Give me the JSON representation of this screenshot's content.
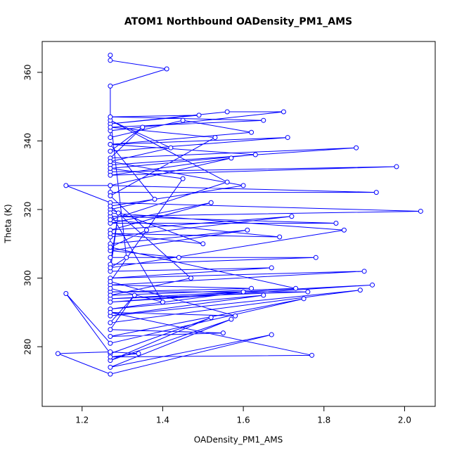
{
  "chart_data": {
    "type": "line",
    "markers": true,
    "title": "ATOM1 Northbound OADensity_PM1_AMS",
    "x_label": "OADensity_PM1_AMS",
    "y_label": "Theta (K)",
    "color": "#0000ff",
    "x": [
      1.27,
      1.27,
      1.41,
      1.27,
      1.27,
      1.49,
      1.27,
      1.56,
      1.7,
      1.27,
      1.27,
      1.45,
      1.62,
      1.27,
      1.71,
      1.27,
      1.35,
      1.27,
      1.88,
      1.27,
      1.27,
      1.98,
      1.27,
      1.57,
      1.27,
      1.93,
      1.27,
      1.27,
      1.16,
      1.27,
      2.04,
      1.27,
      1.83,
      1.27,
      1.52,
      1.27,
      1.72,
      1.27,
      1.27,
      1.61,
      1.27,
      1.44,
      1.27,
      1.78,
      1.27,
      1.29,
      1.27,
      1.67,
      1.27,
      1.9,
      1.27,
      1.62,
      1.27,
      1.76,
      1.27,
      1.92,
      1.27,
      1.6,
      1.27,
      1.65,
      1.27,
      1.89,
      1.27,
      1.33,
      1.27,
      1.55,
      1.27,
      1.75,
      1.27,
      1.16,
      1.27,
      1.52,
      1.27,
      1.57,
      1.27,
      1.67,
      1.27,
      1.14,
      1.27,
      1.34,
      1.27,
      1.77,
      1.27,
      1.58,
      1.27,
      1.45,
      1.27,
      1.63,
      1.27,
      1.38,
      1.27,
      1.5,
      1.27,
      1.69,
      1.27,
      1.56,
      1.27,
      1.42,
      1.27,
      1.6,
      1.27,
      1.47,
      1.27,
      1.73,
      1.27,
      1.36,
      1.27,
      1.53,
      1.27,
      1.65,
      1.27,
      1.31,
      1.27,
      1.85,
      1.27,
      1.4,
      1.27
    ],
    "values": [
      365,
      363.5,
      361,
      356,
      347,
      347.5,
      345,
      348.5,
      348.5,
      343,
      341,
      346,
      342.5,
      339,
      341,
      337,
      344,
      335,
      338,
      333,
      331,
      332.5,
      330,
      335,
      327,
      325,
      325,
      327,
      327,
      322,
      319.5,
      318,
      316,
      316,
      322,
      314,
      318,
      312,
      310,
      314,
      308,
      306,
      306,
      306,
      304,
      319,
      302,
      303,
      300,
      302,
      298,
      297,
      296,
      296,
      294,
      298,
      293,
      296,
      291,
      295,
      289,
      296.5,
      287,
      295,
      285,
      284,
      283,
      294,
      281,
      295.5,
      278,
      288.5,
      276,
      288,
      274,
      283.5,
      272,
      278,
      278.5,
      278,
      277,
      277.5,
      290,
      289,
      299,
      329,
      332,
      336,
      339,
      323,
      320,
      310,
      313,
      312,
      317,
      328,
      346,
      338,
      334,
      327,
      321,
      300,
      295,
      297,
      309,
      314,
      324,
      341,
      344,
      346,
      347,
      306,
      303,
      314,
      319,
      293,
      297
    ],
    "xlim": [
      1.101,
      2.076
    ],
    "ylim": [
      262.6,
      369.0
    ],
    "xticks": [
      1.2,
      1.4,
      1.6,
      1.8,
      {
        "value": 2,
        "label": "2.0"
      }
    ],
    "yticks": [
      280,
      300,
      320,
      340,
      360
    ]
  }
}
